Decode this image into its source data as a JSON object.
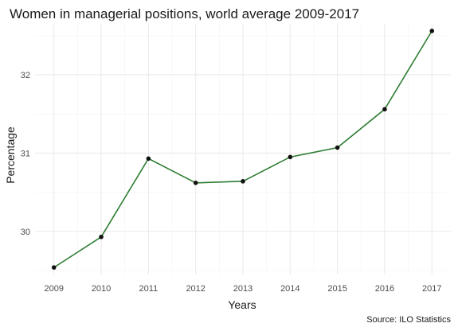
{
  "chart_data": {
    "type": "line",
    "title": "Women in managerial positions, world average 2009-2017",
    "xlabel": "Years",
    "ylabel": "Percentage",
    "caption": "Source: ILO Statistics",
    "x": [
      2009,
      2010,
      2011,
      2012,
      2013,
      2014,
      2015,
      2016,
      2017
    ],
    "x_ticks": [
      "2009",
      "2010",
      "2011",
      "2012",
      "2013",
      "2014",
      "2015",
      "2016",
      "2017"
    ],
    "y_ticks": [
      "30",
      "31",
      "32"
    ],
    "y_tick_values": [
      30,
      31,
      32
    ],
    "series": [
      {
        "values": [
          29.54,
          29.93,
          30.93,
          30.62,
          30.64,
          30.95,
          31.07,
          31.56,
          32.56
        ],
        "line_color": "#2e7d32",
        "point_color": "#111111"
      }
    ],
    "xlim": [
      2008.6,
      2017.4
    ],
    "ylim": [
      29.45,
      32.65
    ],
    "grid": true,
    "legend": "none"
  }
}
